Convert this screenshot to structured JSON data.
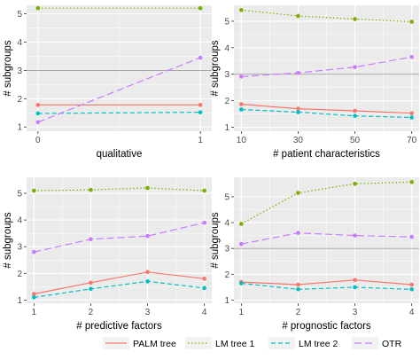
{
  "chart_data": [
    {
      "type": "line",
      "xlabel": "qualitative",
      "ylabel": "# subgroups",
      "x": [
        0,
        1
      ],
      "xticks": [
        "0",
        "1"
      ],
      "ylim": [
        0.85,
        5.3
      ],
      "yticks": [
        "1",
        "2",
        "3",
        "4",
        "5"
      ],
      "hline": 3,
      "series": [
        {
          "name": "PALM tree",
          "values": [
            1.78,
            1.78
          ]
        },
        {
          "name": "LM tree 1",
          "values": [
            5.2,
            5.2
          ]
        },
        {
          "name": "LM tree 2",
          "values": [
            1.48,
            1.52
          ]
        },
        {
          "name": "OTR",
          "values": [
            1.17,
            3.45
          ]
        }
      ]
    },
    {
      "type": "line",
      "xlabel": "# patient characteristics",
      "ylabel": "# subgroups",
      "x": [
        10,
        30,
        50,
        70
      ],
      "xticks": [
        "10",
        "30",
        "50",
        "70"
      ],
      "ylim": [
        0.85,
        5.6
      ],
      "yticks": [
        "1",
        "2",
        "3",
        "4",
        "5"
      ],
      "hline": 3,
      "series": [
        {
          "name": "PALM tree",
          "values": [
            1.87,
            1.7,
            1.62,
            1.53
          ]
        },
        {
          "name": "LM tree 1",
          "values": [
            5.42,
            5.2,
            5.08,
            4.98
          ]
        },
        {
          "name": "LM tree 2",
          "values": [
            1.67,
            1.57,
            1.43,
            1.37
          ]
        },
        {
          "name": "OTR",
          "values": [
            2.91,
            3.05,
            3.27,
            3.65
          ]
        }
      ]
    },
    {
      "type": "line",
      "xlabel": "# predictive factors",
      "ylabel": "# subgroups",
      "x": [
        1,
        2,
        3,
        4
      ],
      "xticks": [
        "1",
        "2",
        "3",
        "4"
      ],
      "ylim": [
        0.88,
        5.6
      ],
      "yticks": [
        "1",
        "2",
        "3",
        "4",
        "5"
      ],
      "hline": null,
      "series": [
        {
          "name": "PALM tree",
          "values": [
            1.23,
            1.65,
            2.05,
            1.8
          ]
        },
        {
          "name": "LM tree 1",
          "values": [
            5.1,
            5.13,
            5.2,
            5.1
          ]
        },
        {
          "name": "LM tree 2",
          "values": [
            1.1,
            1.42,
            1.7,
            1.45
          ]
        },
        {
          "name": "OTR",
          "values": [
            2.8,
            3.28,
            3.4,
            3.9
          ]
        }
      ]
    },
    {
      "type": "line",
      "xlabel": "# prognostic factors",
      "ylabel": "# subgroups",
      "x": [
        1,
        2,
        3,
        4
      ],
      "xticks": [
        "1",
        "2",
        "3",
        "4"
      ],
      "ylim": [
        0.88,
        5.75
      ],
      "yticks": [
        "1",
        "2",
        "3",
        "4",
        "5"
      ],
      "hline": 3,
      "series": [
        {
          "name": "PALM tree",
          "values": [
            1.7,
            1.6,
            1.78,
            1.6
          ]
        },
        {
          "name": "LM tree 1",
          "values": [
            3.95,
            5.15,
            5.5,
            5.57
          ]
        },
        {
          "name": "LM tree 2",
          "values": [
            1.65,
            1.42,
            1.5,
            1.42
          ]
        },
        {
          "name": "OTR",
          "values": [
            3.17,
            3.6,
            3.5,
            3.45
          ]
        }
      ]
    }
  ],
  "legend": [
    {
      "label": "PALM tree",
      "color": "#f8766d",
      "dash": "solid"
    },
    {
      "label": "LM tree 1",
      "color": "#7cae00",
      "dash": "dotted"
    },
    {
      "label": "LM tree 2",
      "color": "#00bfc4",
      "dash": "dashed"
    },
    {
      "label": "OTR",
      "color": "#c77cff",
      "dash": "longdash"
    }
  ],
  "colors": {
    "panel_background": "#ebebeb",
    "grid": "#ffffff",
    "reference_line": "#9a9a9a",
    "text": "#000000"
  }
}
